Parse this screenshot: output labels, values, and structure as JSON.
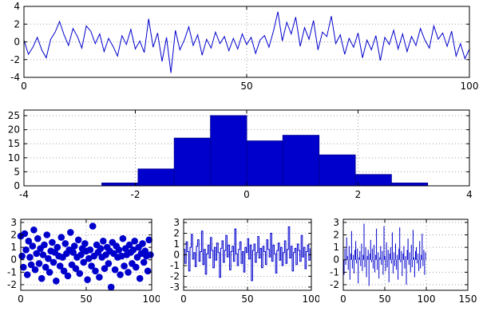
{
  "colors": {
    "series": "#0000cc",
    "bar_edge": "#000099",
    "grid": "#a0a0a0",
    "axis": "#000000",
    "background": "#ffffff"
  },
  "chart_data": [
    {
      "id": "noise-line",
      "type": "line",
      "title": "",
      "xlabel": "",
      "ylabel": "",
      "x_range": [
        0,
        100
      ],
      "y_range": [
        -4,
        4
      ],
      "x_ticks": [
        0,
        50,
        100
      ],
      "y_ticks": [
        -4,
        -2,
        0,
        2,
        4
      ],
      "grid": true,
      "y": [
        0.2,
        -1.4,
        -0.6,
        0.5,
        -0.9,
        -1.8,
        0.3,
        1.1,
        2.3,
        0.8,
        -0.4,
        1.5,
        0.6,
        -0.7,
        1.8,
        1.2,
        -0.2,
        0.9,
        -1.1,
        0.4,
        -0.5,
        -1.6,
        0.7,
        -0.3,
        1.4,
        -0.8,
        0.1,
        -1.2,
        2.6,
        -0.6,
        1.0,
        -2.2,
        0.5,
        -3.5,
        1.3,
        -0.9,
        0.2,
        1.7,
        -0.4,
        0.8,
        -1.5,
        0.3,
        -0.7,
        1.1,
        -0.2,
        0.6,
        -1.0,
        0.4,
        -0.8,
        0.9,
        -0.3,
        0.5,
        -1.3,
        0.2,
        0.7,
        -0.6,
        1.2,
        3.4,
        0.1,
        2.2,
        0.9,
        2.8,
        -0.5,
        1.6,
        0.3,
        2.4,
        -0.9,
        1.1,
        0.6,
        2.9,
        -0.2,
        0.8,
        -1.4,
        0.4,
        -0.6,
        1.0,
        -1.8,
        0.2,
        -0.9,
        0.7,
        -2.1,
        0.5,
        -0.3,
        1.3,
        -0.8,
        0.9,
        -1.1,
        0.6,
        -0.4,
        1.5,
        0.2,
        -0.7,
        1.8,
        0.3,
        1.0,
        -0.5,
        1.2,
        -1.6,
        -0.2,
        -1.9,
        -0.8
      ]
    },
    {
      "id": "histogram",
      "type": "bar",
      "title": "",
      "xlabel": "",
      "ylabel": "",
      "x_range": [
        -4,
        4
      ],
      "y_range": [
        0,
        27
      ],
      "x_ticks": [
        -4,
        -2,
        0,
        2,
        4
      ],
      "y_ticks": [
        0,
        5,
        10,
        15,
        20,
        25
      ],
      "grid": true,
      "bin_start": -2.6,
      "bin_width": 0.65,
      "counts": [
        1,
        6,
        17,
        25,
        16,
        18,
        11,
        4,
        1
      ]
    },
    {
      "id": "scatter",
      "type": "scatter",
      "title": "",
      "xlabel": "",
      "ylabel": "",
      "x_range": [
        0,
        100
      ],
      "y_range": [
        -2.45,
        3.25
      ],
      "x_ticks": [
        0,
        50,
        100
      ],
      "y_ticks": [
        -2,
        -1,
        0,
        1,
        2,
        3
      ],
      "grid": true,
      "y": [
        1.9,
        0.3,
        -0.6,
        2.1,
        0.8,
        -1.2,
        1.5,
        0.2,
        -0.4,
        1.1,
        2.4,
        -0.8,
        0.5,
        1.7,
        -0.3,
        0.9,
        -1.5,
        0.4,
        1.2,
        -0.6,
        2.0,
        0.1,
        -1.0,
        0.7,
        1.4,
        -0.2,
        0.6,
        -1.7,
        1.0,
        0.3,
        -0.5,
        1.8,
        0.2,
        -0.9,
        1.3,
        0.5,
        -1.3,
        0.8,
        2.2,
        -0.4,
        0.6,
        1.1,
        -0.7,
        0.2,
        1.6,
        -1.1,
        0.4,
        0.9,
        -0.2,
        1.3,
        0.7,
        -1.6,
        0.1,
        0.8,
        -0.5,
        2.7,
        0.3,
        -0.9,
        1.2,
        0.6,
        -1.4,
        0.9,
        0.2,
        1.5,
        -0.7,
        0.4,
        1.0,
        -0.3,
        0.7,
        -2.2,
        1.4,
        0.5,
        -0.8,
        1.1,
        0.2,
        0.8,
        -1.2,
        0.3,
        1.7,
        -0.5,
        0.9,
        0.4,
        -1.0,
        1.2,
        0.6,
        -0.3,
        0.8,
        1.5,
        -0.6,
        0.2,
        1.0,
        -1.5,
        0.5,
        1.3,
        -0.2,
        0.7,
        0.3,
        -0.9,
        1.6,
        0.4
      ]
    },
    {
      "id": "steps",
      "type": "step",
      "title": "",
      "xlabel": "",
      "ylabel": "",
      "x_range": [
        0,
        100
      ],
      "y_range": [
        -3.3,
        3.3
      ],
      "x_ticks": [
        0,
        50,
        100
      ],
      "y_ticks": [
        -3,
        -2,
        -1,
        0,
        1,
        2,
        3
      ],
      "grid": true,
      "y": [
        0.5,
        -0.8,
        1.2,
        0.3,
        -1.5,
        0.7,
        1.9,
        -0.4,
        0.2,
        -1.1,
        0.8,
        1.4,
        -0.6,
        0.3,
        2.2,
        -0.9,
        0.5,
        -1.8,
        0.1,
        0.9,
        -0.3,
        1.6,
        0.4,
        -1.2,
        0.7,
        -0.5,
        1.1,
        0.2,
        -2.1,
        0.6,
        1.3,
        -0.7,
        0.4,
        1.8,
        -0.2,
        0.9,
        -1.4,
        0.3,
        0.8,
        -0.6,
        2.4,
        0.1,
        -1.0,
        0.5,
        1.2,
        -0.8,
        0.3,
        -1.6,
        0.7,
        0.2,
        1.5,
        -0.4,
        0.9,
        -2.4,
        0.4,
        1.0,
        -0.7,
        0.2,
        1.7,
        -0.3,
        0.6,
        -1.2,
        0.8,
        0.3,
        -0.9,
        1.4,
        0.5,
        -0.2,
        2.0,
        -0.6,
        0.9,
        0.1,
        -1.7,
        0.4,
        1.1,
        -0.5,
        0.7,
        -1.0,
        0.2,
        1.3,
        -0.8,
        0.5,
        2.6,
        -0.3,
        0.8,
        -1.5,
        0.2,
        0.6,
        -0.9,
        1.0,
        0.4,
        -0.6,
        1.8,
        -0.2,
        0.7,
        -1.3,
        0.3,
        0.9,
        -0.5,
        0.6
      ]
    },
    {
      "id": "impulses",
      "type": "impulse",
      "title": "",
      "xlabel": "",
      "ylabel": "",
      "x_range": [
        0,
        150
      ],
      "y_range": [
        -2.45,
        3.25
      ],
      "x_ticks": [
        0,
        50,
        100,
        150
      ],
      "y_ticks": [
        -2,
        -1,
        0,
        1,
        2,
        3
      ],
      "grid": true,
      "y": [
        0.6,
        -1.2,
        0.9,
        -0.4,
        1.8,
        0.3,
        -0.8,
        1.1,
        -1.6,
        0.5,
        2.3,
        -0.7,
        0.4,
        -1.1,
        0.8,
        1.5,
        -0.3,
        0.9,
        -1.9,
        0.2,
        0.7,
        -0.5,
        1.3,
        -0.9,
        0.4,
        2.9,
        -0.6,
        1.0,
        -1.4,
        0.3,
        0.8,
        -2.1,
        0.5,
        1.6,
        -0.2,
        0.9,
        -0.7,
        1.2,
        -1.0,
        0.4,
        2.5,
        -0.8,
        0.6,
        -1.5,
        0.2,
        1.1,
        -0.4,
        0.7,
        -1.2,
        2.7,
        0.3,
        -0.9,
        1.4,
        -0.6,
        0.8,
        -1.8,
        0.5,
        1.0,
        -0.3,
        2.2,
        -1.1,
        0.6,
        -0.5,
        1.3,
        -0.8,
        0.4,
        -1.6,
        0.9,
        2.6,
        -0.2,
        0.7,
        -1.3,
        0.5,
        1.1,
        -0.7,
        0.3,
        -2.0,
        0.8,
        1.7,
        -0.4,
        0.6,
        -1.0,
        1.2,
        -0.6,
        2.4,
        0.2,
        -1.4,
        0.7,
        1.0,
        -0.3,
        0.5,
        -0.9,
        1.5,
        -0.7,
        0.4,
        2.1,
        -0.5,
        0.8,
        -1.2,
        0.6
      ]
    }
  ]
}
